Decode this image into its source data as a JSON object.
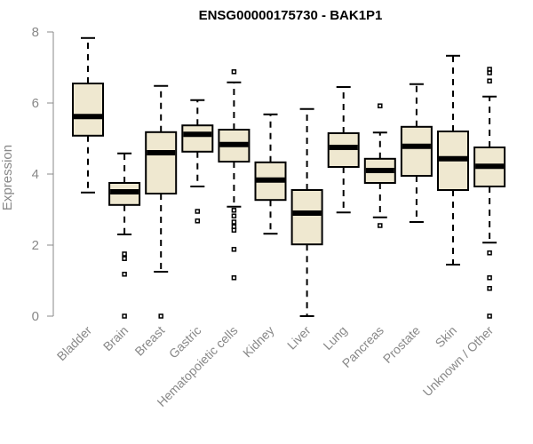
{
  "chart_data": {
    "type": "box",
    "title": "ENSG00000175730 - BAK1P1",
    "xlabel": "",
    "ylabel": "Expression",
    "ylim": [
      0,
      8
    ],
    "yticks": [
      0,
      2,
      4,
      6,
      8
    ],
    "categories": [
      "Bladder",
      "Brain",
      "Breast",
      "Gastric",
      "Hematopoietic cells",
      "Kidney",
      "Liver",
      "Lung",
      "Pancreas",
      "Prostate",
      "Skin",
      "Unknown / Other"
    ],
    "boxes": [
      {
        "category": "Bladder",
        "min": 3.48,
        "q1": 5.08,
        "median": 5.62,
        "q3": 6.55,
        "max": 7.83,
        "outliers": []
      },
      {
        "category": "Brain",
        "min": 2.3,
        "q1": 3.13,
        "median": 3.5,
        "q3": 3.75,
        "max": 4.58,
        "outliers": [
          1.75,
          1.62,
          1.18,
          0.0
        ]
      },
      {
        "category": "Breast",
        "min": 1.25,
        "q1": 3.45,
        "median": 4.6,
        "q3": 5.18,
        "max": 6.48,
        "outliers": [
          0.0
        ]
      },
      {
        "category": "Gastric",
        "min": 3.65,
        "q1": 4.63,
        "median": 5.12,
        "q3": 5.37,
        "max": 6.08,
        "outliers": [
          2.95,
          2.68
        ]
      },
      {
        "category": "Hematopoietic cells",
        "min": 3.08,
        "q1": 4.35,
        "median": 4.83,
        "q3": 5.25,
        "max": 6.58,
        "outliers": [
          6.88,
          2.98,
          2.82,
          2.65,
          2.52,
          2.42,
          1.88,
          1.08
        ]
      },
      {
        "category": "Kidney",
        "min": 2.32,
        "q1": 3.27,
        "median": 3.83,
        "q3": 4.33,
        "max": 5.68,
        "outliers": []
      },
      {
        "category": "Liver",
        "min": 0.0,
        "q1": 2.02,
        "median": 2.9,
        "q3": 3.55,
        "max": 5.83,
        "outliers": []
      },
      {
        "category": "Lung",
        "min": 2.92,
        "q1": 4.2,
        "median": 4.75,
        "q3": 5.15,
        "max": 6.45,
        "outliers": []
      },
      {
        "category": "Pancreas",
        "min": 2.78,
        "q1": 3.75,
        "median": 4.1,
        "q3": 4.43,
        "max": 5.17,
        "outliers": [
          5.92,
          2.55
        ]
      },
      {
        "category": "Prostate",
        "min": 2.65,
        "q1": 3.95,
        "median": 4.78,
        "q3": 5.33,
        "max": 6.53,
        "outliers": []
      },
      {
        "category": "Skin",
        "min": 1.45,
        "q1": 3.55,
        "median": 4.43,
        "q3": 5.2,
        "max": 7.33,
        "outliers": []
      },
      {
        "category": "Unknown / Other",
        "min": 2.07,
        "q1": 3.65,
        "median": 4.22,
        "q3": 4.75,
        "max": 6.18,
        "outliers": [
          6.95,
          6.85,
          6.62,
          1.78,
          1.08,
          0.78,
          0.0
        ]
      }
    ],
    "colors": {
      "box_fill": "#efe8d0",
      "stroke": "#000000",
      "axis": "#888888"
    },
    "grid": false,
    "legend": "none"
  }
}
